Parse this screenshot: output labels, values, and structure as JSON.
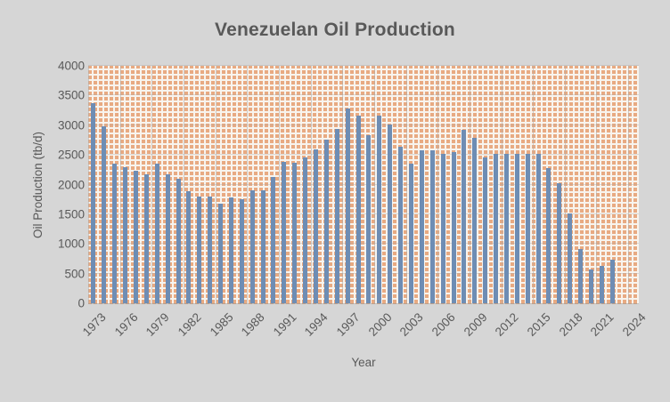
{
  "chart_data": {
    "type": "bar",
    "title": "Venezuelan Oil Production",
    "xlabel": "Year",
    "ylabel": "Oil Production (tb/d)",
    "ylim": [
      0,
      4000
    ],
    "yticks": [
      0,
      500,
      1000,
      1500,
      2000,
      2500,
      3000,
      3500,
      4000
    ],
    "x_tick_labels": [
      "1973",
      "1976",
      "1979",
      "1982",
      "1985",
      "1988",
      "1991",
      "1994",
      "1997",
      "2000",
      "2003",
      "2006",
      "2009",
      "2012",
      "2015",
      "2018",
      "2021",
      "2024"
    ],
    "x_tick_step": 3,
    "axis_slot_count": 52,
    "first_year": 1973,
    "years": [
      1973,
      1974,
      1975,
      1976,
      1977,
      1978,
      1979,
      1980,
      1981,
      1982,
      1983,
      1984,
      1985,
      1986,
      1987,
      1988,
      1989,
      1990,
      1991,
      1992,
      1993,
      1994,
      1995,
      1996,
      1997,
      1998,
      1999,
      2000,
      2001,
      2002,
      2003,
      2004,
      2005,
      2006,
      2007,
      2008,
      2009,
      2010,
      2011,
      2012,
      2013,
      2014,
      2015,
      2016,
      2017,
      2018,
      2019,
      2020,
      2021,
      2022
    ],
    "values": [
      3366,
      2976,
      2346,
      2294,
      2238,
      2166,
      2356,
      2168,
      2102,
      1895,
      1801,
      1798,
      1677,
      1787,
      1752,
      1903,
      1907,
      2135,
      2375,
      2371,
      2450,
      2588,
      2750,
      2938,
      3280,
      3167,
      2830,
      3155,
      3010,
      2640,
      2350,
      2580,
      2580,
      2511,
      2550,
      2920,
      2780,
      2450,
      2520,
      2520,
      2520,
      2520,
      2510,
      2280,
      2030,
      1510,
      910,
      565,
      625,
      740
    ],
    "legend": null,
    "grid": "subtle major gridlines, horizontal every 500 and vertical every 3 years",
    "colors": {
      "background": "#d6d6d6",
      "bar": "#6e8db4",
      "pattern_orange": "#e8aa82",
      "pattern_white": "#f8f4ee",
      "text": "#595959",
      "gridline": "#ababab"
    }
  }
}
